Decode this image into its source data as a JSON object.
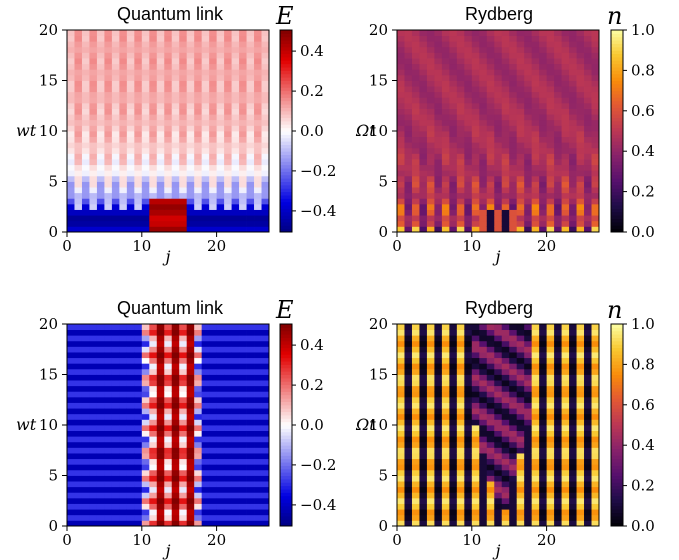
{
  "chart_data": [
    {
      "type": "heatmap",
      "title": "Quantum link",
      "xlabel": "j",
      "ylabel": "wt",
      "xlim": [
        0,
        27
      ],
      "ylim": [
        0,
        20
      ],
      "xticks": [
        0,
        10,
        20
      ],
      "yticks": [
        0,
        5,
        10,
        15,
        20
      ],
      "colorbar": {
        "label": "E",
        "range": [
          -0.5,
          0.5
        ],
        "ticks": [
          0.4,
          0.2,
          0.0,
          -0.2,
          -0.4
        ],
        "tick_labels": [
          "0.4",
          "0.2",
          "0.0",
          "−0.2",
          "−0.4"
        ],
        "colormap": "bwr"
      },
      "grid": false
    },
    {
      "type": "heatmap",
      "title": "Rydberg",
      "xlabel": "j",
      "ylabel": "Ωt",
      "xlim": [
        0,
        27
      ],
      "ylim": [
        0,
        20
      ],
      "xticks": [
        0,
        10,
        20
      ],
      "yticks": [
        0,
        5,
        10,
        15,
        20
      ],
      "colorbar": {
        "label": "n",
        "range": [
          0.0,
          1.0
        ],
        "ticks": [
          1.0,
          0.8,
          0.6,
          0.4,
          0.2,
          0.0
        ],
        "tick_labels": [
          "1.0",
          "0.8",
          "0.6",
          "0.4",
          "0.2",
          "0.0"
        ],
        "colormap": "inferno"
      },
      "grid": false
    },
    {
      "type": "heatmap",
      "title": "Quantum link",
      "xlabel": "j",
      "ylabel": "wt",
      "xlim": [
        0,
        27
      ],
      "ylim": [
        0,
        20
      ],
      "xticks": [
        0,
        10,
        20
      ],
      "yticks": [
        0,
        5,
        10,
        15,
        20
      ],
      "colorbar": {
        "label": "E",
        "range": [
          -0.5,
          0.5
        ],
        "ticks": [
          0.4,
          0.2,
          0.0,
          -0.2,
          -0.4
        ],
        "tick_labels": [
          "0.4",
          "0.2",
          "0.0",
          "−0.2",
          "−0.4"
        ],
        "colormap": "bwr"
      },
      "grid": false
    },
    {
      "type": "heatmap",
      "title": "Rydberg",
      "xlabel": "j",
      "ylabel": "Ωt",
      "xlim": [
        0,
        27
      ],
      "ylim": [
        0,
        20
      ],
      "xticks": [
        0,
        10,
        20
      ],
      "yticks": [
        0,
        5,
        10,
        15,
        20
      ],
      "colorbar": {
        "label": "n",
        "range": [
          0.0,
          1.0
        ],
        "ticks": [
          1.0,
          0.8,
          0.6,
          0.4,
          0.2,
          0.0
        ],
        "tick_labels": [
          "1.0",
          "0.8",
          "0.6",
          "0.4",
          "0.2",
          "0.0"
        ],
        "colormap": "inferno"
      },
      "grid": false
    }
  ]
}
